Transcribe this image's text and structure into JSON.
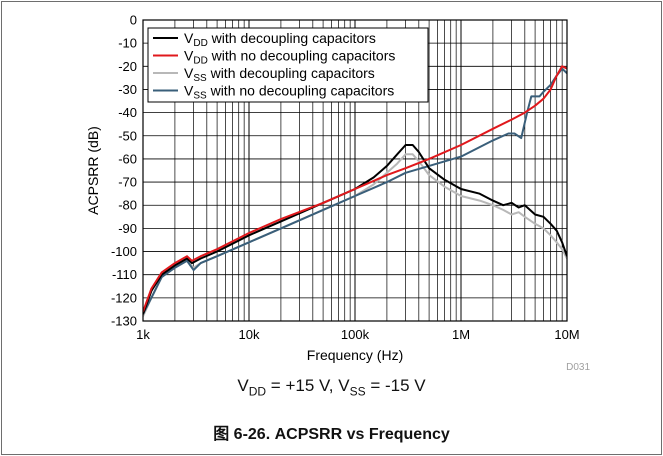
{
  "chart_data": {
    "type": "line",
    "title": "",
    "xlabel": "Frequency (Hz)",
    "ylabel": "ACPSRR (dB)",
    "x_scale": "log",
    "xlim": [
      1000,
      10000000
    ],
    "ylim": [
      -130,
      0
    ],
    "x_ticks": [
      1000,
      10000,
      100000,
      1000000,
      10000000
    ],
    "x_tick_labels": [
      "1k",
      "10k",
      "100k",
      "1M",
      "10M"
    ],
    "y_ticks": [
      0,
      -10,
      -20,
      -30,
      -40,
      -50,
      -60,
      -70,
      -80,
      -90,
      -100,
      -110,
      -120,
      -130
    ],
    "y_tick_labels": [
      "0",
      "-10",
      "-20",
      "-30",
      "-40",
      "-50",
      "-60",
      "-70",
      "-80",
      "-90",
      "-100",
      "-110",
      "-120",
      "-130"
    ],
    "grid": true,
    "legend_position": "top-right",
    "annotation": "D031",
    "series": [
      {
        "name": "V<sub>DD</sub> with decoupling capacitors",
        "color": "#000000",
        "points": [
          [
            1000,
            -127
          ],
          [
            1200,
            -117
          ],
          [
            1500,
            -110
          ],
          [
            2000,
            -106
          ],
          [
            2600,
            -103
          ],
          [
            2900,
            -105
          ],
          [
            3500,
            -103
          ],
          [
            5000,
            -100
          ],
          [
            10000,
            -93
          ],
          [
            20000,
            -87
          ],
          [
            50000,
            -79
          ],
          [
            100000,
            -73
          ],
          [
            150000,
            -68
          ],
          [
            200000,
            -63
          ],
          [
            250000,
            -58
          ],
          [
            300000,
            -54
          ],
          [
            350000,
            -54
          ],
          [
            400000,
            -57
          ],
          [
            500000,
            -64
          ],
          [
            700000,
            -69
          ],
          [
            1000000,
            -73
          ],
          [
            1500000,
            -75
          ],
          [
            2000000,
            -78
          ],
          [
            2500000,
            -80
          ],
          [
            3000000,
            -79
          ],
          [
            3500000,
            -81
          ],
          [
            4000000,
            -80
          ],
          [
            5000000,
            -84
          ],
          [
            6000000,
            -85
          ],
          [
            7000000,
            -88
          ],
          [
            8000000,
            -91
          ],
          [
            9000000,
            -96
          ],
          [
            10000000,
            -102
          ]
        ]
      },
      {
        "name": "V<sub>DD</sub> with no decoupling capacitors",
        "color": "#e0181c",
        "points": [
          [
            1000,
            -126
          ],
          [
            1200,
            -116
          ],
          [
            1500,
            -109
          ],
          [
            2000,
            -105
          ],
          [
            2600,
            -102
          ],
          [
            2900,
            -104
          ],
          [
            3500,
            -102
          ],
          [
            5000,
            -99
          ],
          [
            10000,
            -92
          ],
          [
            20000,
            -86
          ],
          [
            50000,
            -79
          ],
          [
            100000,
            -73
          ],
          [
            200000,
            -67
          ],
          [
            300000,
            -64
          ],
          [
            500000,
            -60
          ],
          [
            1000000,
            -54
          ],
          [
            2000000,
            -47
          ],
          [
            3000000,
            -43
          ],
          [
            4000000,
            -40
          ],
          [
            5000000,
            -37
          ],
          [
            6000000,
            -34
          ],
          [
            7000000,
            -30
          ],
          [
            8000000,
            -24
          ],
          [
            9000000,
            -20
          ],
          [
            10000000,
            -21
          ]
        ]
      },
      {
        "name": "V<sub>SS</sub> with decoupling capacitors",
        "color": "#b8b8b8",
        "points": [
          [
            1000,
            -128
          ],
          [
            1200,
            -120
          ],
          [
            1500,
            -111
          ],
          [
            2000,
            -107
          ],
          [
            2600,
            -104
          ],
          [
            3000,
            -107
          ],
          [
            3500,
            -105
          ],
          [
            5000,
            -102
          ],
          [
            10000,
            -96
          ],
          [
            20000,
            -90
          ],
          [
            50000,
            -82
          ],
          [
            100000,
            -76
          ],
          [
            150000,
            -71
          ],
          [
            200000,
            -66
          ],
          [
            250000,
            -62
          ],
          [
            300000,
            -58
          ],
          [
            350000,
            -58
          ],
          [
            400000,
            -61
          ],
          [
            500000,
            -67
          ],
          [
            700000,
            -72
          ],
          [
            1000000,
            -76
          ],
          [
            1500000,
            -78
          ],
          [
            2000000,
            -80
          ],
          [
            2500000,
            -82
          ],
          [
            3000000,
            -84
          ],
          [
            3500000,
            -83
          ],
          [
            4000000,
            -85
          ],
          [
            5000000,
            -88
          ],
          [
            6000000,
            -90
          ],
          [
            7000000,
            -93
          ],
          [
            8000000,
            -96
          ],
          [
            9000000,
            -99
          ],
          [
            10000000,
            -103
          ]
        ]
      },
      {
        "name": "V<sub>SS</sub> with no decoupling capacitors",
        "color": "#3a5f7a",
        "points": [
          [
            1000,
            -127
          ],
          [
            1200,
            -120
          ],
          [
            1500,
            -111
          ],
          [
            2000,
            -107
          ],
          [
            2600,
            -104
          ],
          [
            3000,
            -108
          ],
          [
            3500,
            -105
          ],
          [
            5000,
            -102
          ],
          [
            10000,
            -96
          ],
          [
            20000,
            -90
          ],
          [
            50000,
            -82
          ],
          [
            100000,
            -76
          ],
          [
            200000,
            -70
          ],
          [
            300000,
            -66
          ],
          [
            500000,
            -63
          ],
          [
            1000000,
            -59
          ],
          [
            2000000,
            -52
          ],
          [
            2800000,
            -49
          ],
          [
            3200000,
            -49
          ],
          [
            3700000,
            -51
          ],
          [
            4200000,
            -40
          ],
          [
            4600000,
            -33
          ],
          [
            5500000,
            -33
          ],
          [
            6000000,
            -31
          ],
          [
            7000000,
            -28
          ],
          [
            8000000,
            -24
          ],
          [
            9000000,
            -21
          ],
          [
            10000000,
            -23
          ]
        ]
      }
    ]
  },
  "caption": {
    "conditions": "V<sub>DD</sub> = +15 V, V<sub>SS</sub> = -15 V",
    "figure": "图 6-26. ACPSRR vs Frequency"
  }
}
